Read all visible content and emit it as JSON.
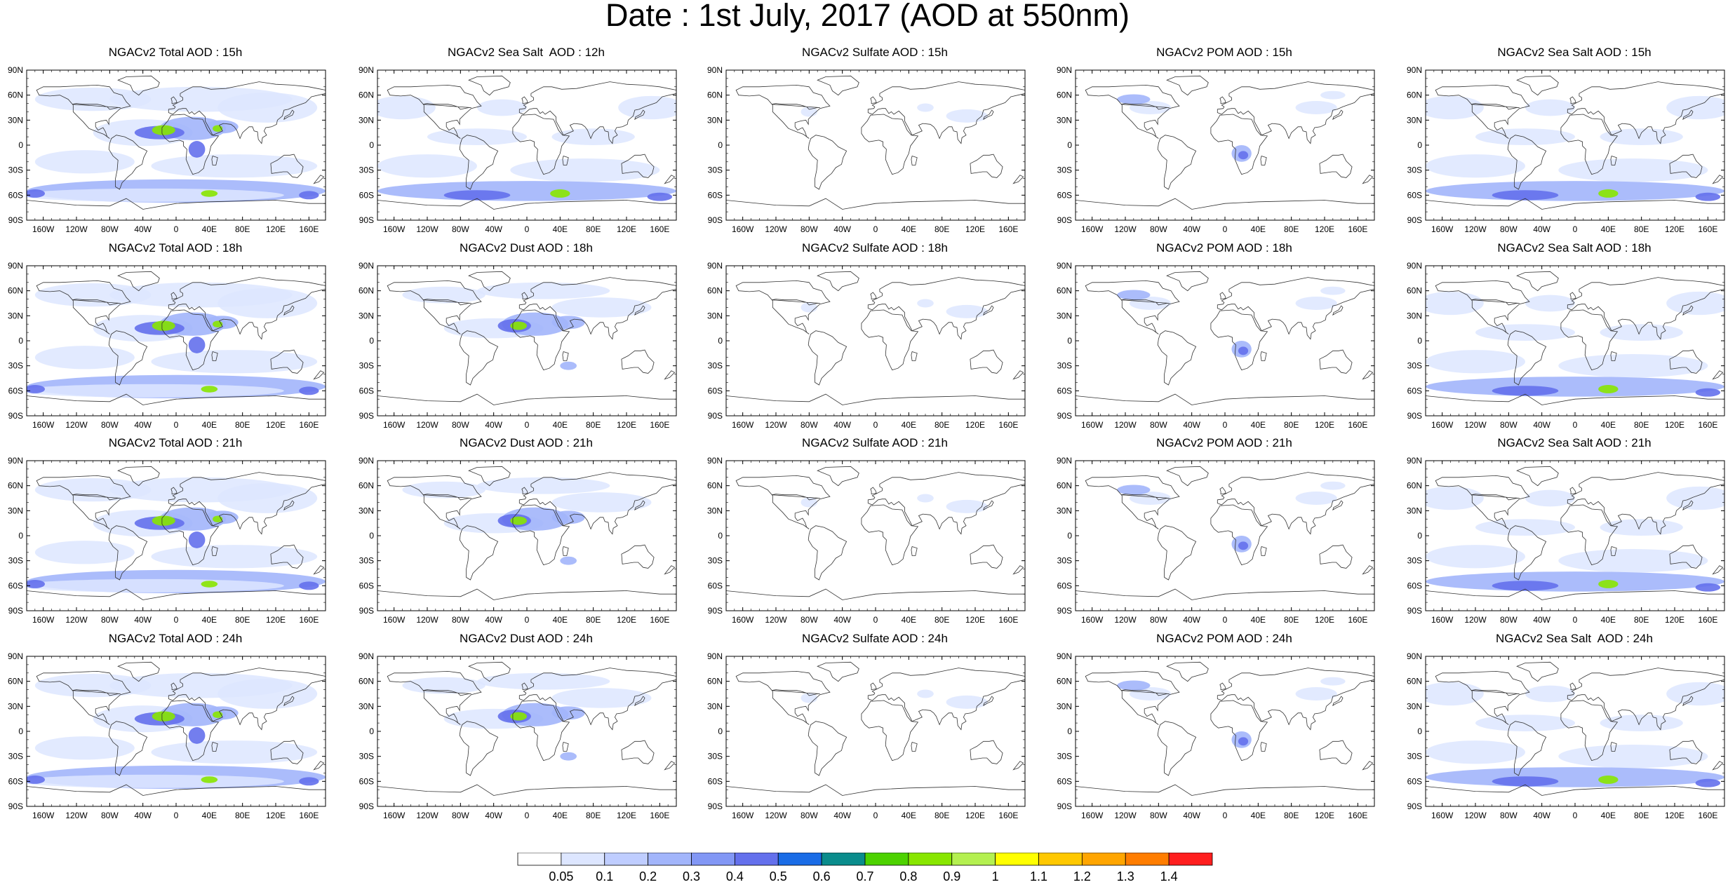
{
  "title": "Date : 1st July, 2017 (AOD at 550nm)",
  "axes": {
    "lat_ticks": [
      "90N",
      "60N",
      "30N",
      "0",
      "30S",
      "60S",
      "90S"
    ],
    "lon_ticks": [
      "160W",
      "120W",
      "80W",
      "40W",
      "0",
      "40E",
      "80E",
      "120E",
      "160E"
    ],
    "lat_values": [
      90,
      60,
      30,
      0,
      -30,
      -60,
      -90
    ],
    "lon_values": [
      -160,
      -120,
      -80,
      -40,
      0,
      40,
      80,
      120,
      160
    ]
  },
  "panel_titles": [
    [
      "NGACv2 Total AOD : 15h",
      "NGACv2 Sea Salt  AOD : 12h",
      "NGACv2 Sulfate AOD : 15h",
      "NGACv2 POM AOD : 15h",
      "NGACv2 Sea Salt AOD : 15h"
    ],
    [
      "NGACv2 Total AOD : 18h",
      "NGACv2 Dust AOD : 18h",
      "NGACv2 Sulfate AOD : 18h",
      "NGACv2 POM AOD : 18h",
      "NGACv2 Sea Salt AOD : 18h"
    ],
    [
      "NGACv2 Total AOD : 21h",
      "NGACv2 Dust AOD : 21h",
      "NGACv2 Sulfate AOD : 21h",
      "NGACv2 POM AOD : 21h",
      "NGACv2 Sea Salt AOD : 21h"
    ],
    [
      "NGACv2 Total AOD : 24h",
      "NGACv2 Dust AOD : 24h",
      "NGACv2 Sulfate AOD : 24h",
      "NGACv2 POM AOD : 24h",
      "NGACv2 Sea Salt  AOD : 24h"
    ]
  ],
  "colorbar": {
    "labels": [
      "0.05",
      "0.1",
      "0.2",
      "0.3",
      "0.4",
      "0.5",
      "0.6",
      "0.7",
      "0.8",
      "0.9",
      "1",
      "1.1",
      "1.2",
      "1.3",
      "1.4"
    ],
    "colors": [
      "#ffffff",
      "#dde6ff",
      "#bfcdff",
      "#a2b5fb",
      "#8297f5",
      "#6470ec",
      "#1a6ce6",
      "#0a8c8c",
      "#4dd200",
      "#88e600",
      "#b4f050",
      "#ffff00",
      "#ffc800",
      "#ffa500",
      "#ff7d00",
      "#ff1e1e"
    ]
  },
  "colors": {
    "land_outline": "#333333",
    "low_aod": "#dde6ff",
    "mid_aod": "#a2b5fb",
    "high_aod": "#6470ec",
    "dust_peak": "#88e600"
  }
}
